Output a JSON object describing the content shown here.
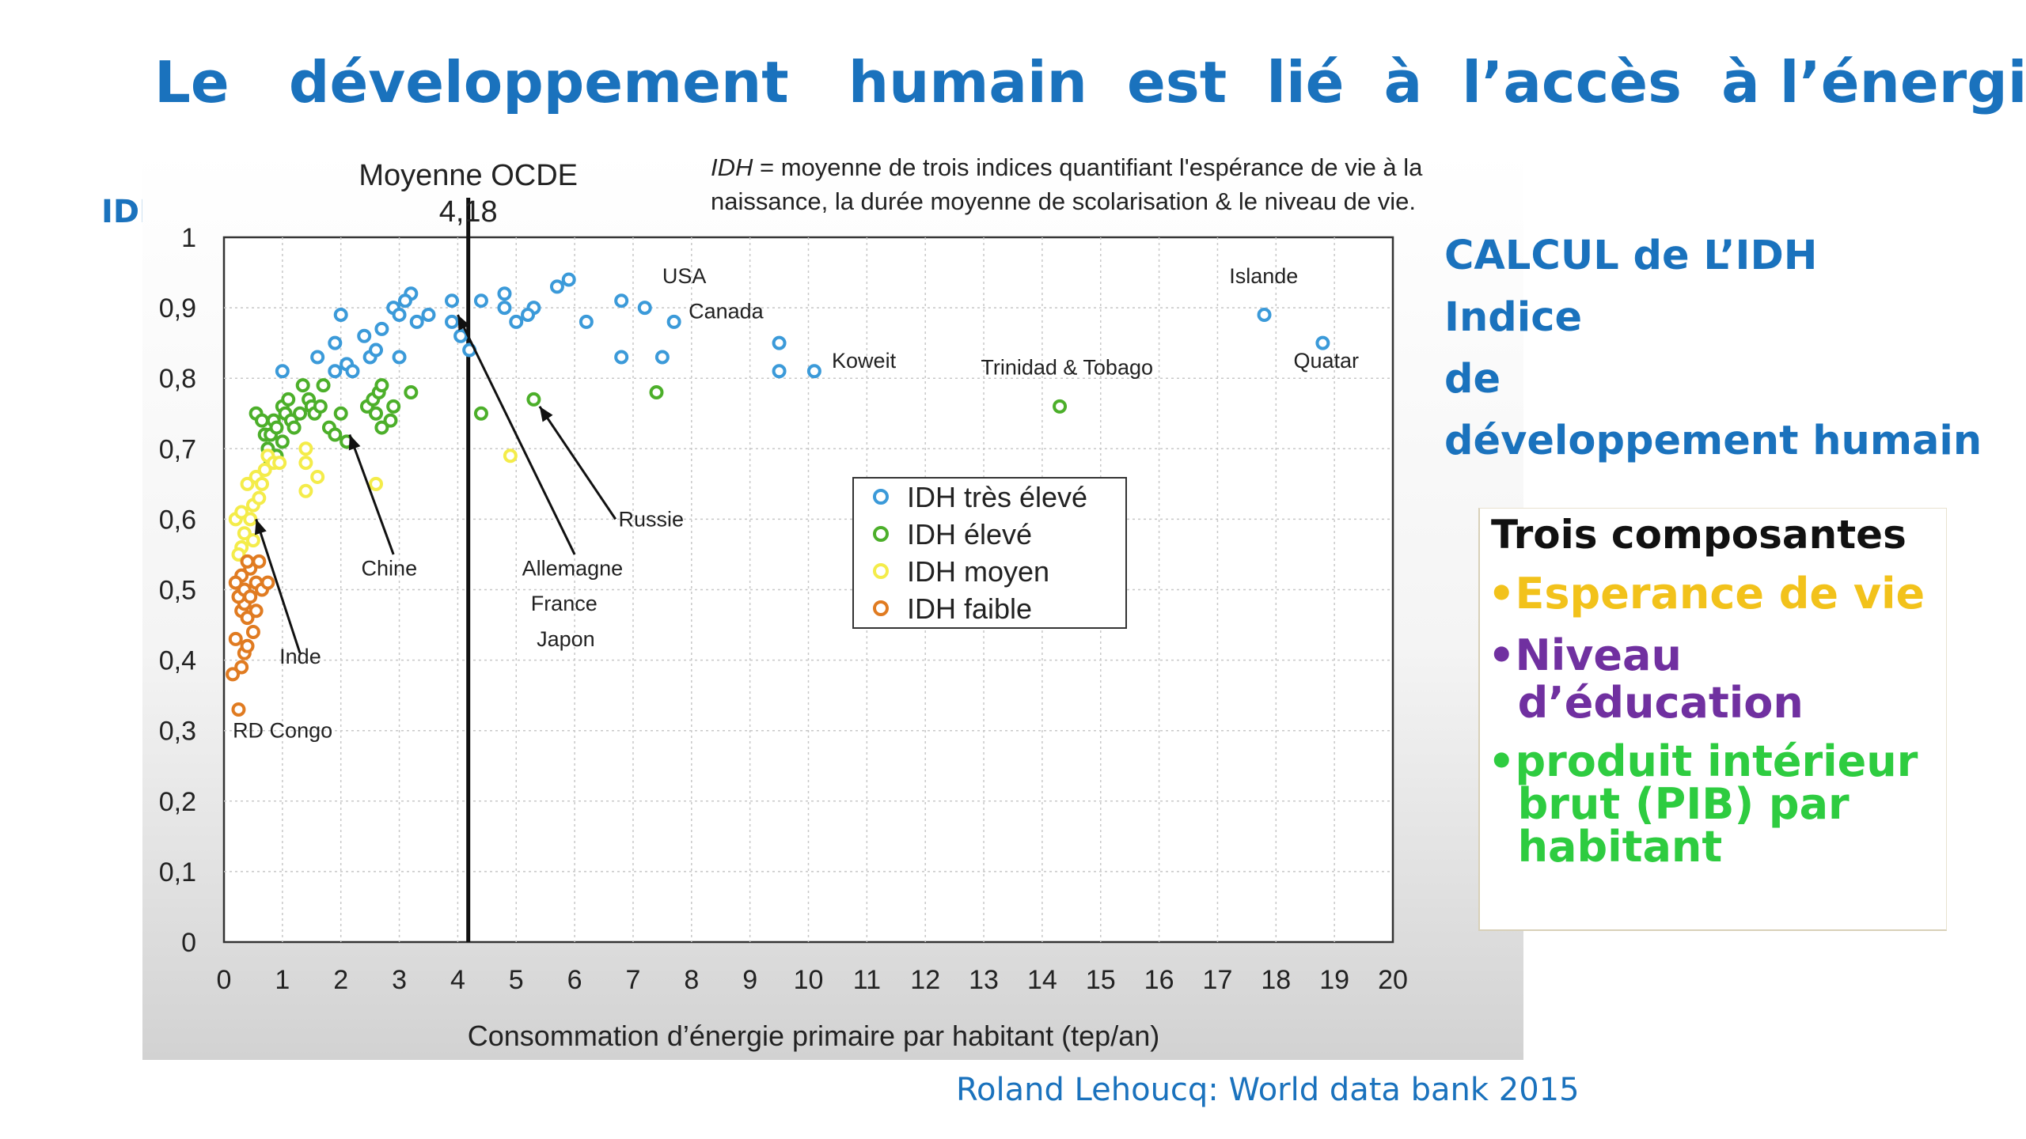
{
  "slide": {
    "title": "Le   développement   humain  est  lié  à  l’accès  à l’énergie",
    "idh_label": "IDH",
    "calc_lines": [
      "CALCUL de L’IDH",
      "Indice",
      "de",
      "développement humain"
    ],
    "components_heading": "Trois composantes",
    "components": [
      {
        "lines": [
          "•Esperance de vie"
        ],
        "color": "#f2c21b"
      },
      {
        "lines": [
          "•Niveau",
          "  d’éducation"
        ],
        "color": "#7030a0"
      },
      {
        "lines": [
          "•produit intérieur",
          "  brut (PIB) par",
          "  habitant"
        ],
        "color": "#2ecc40"
      }
    ],
    "source": "Roland Lehoucq:  World data bank 2015"
  },
  "chart_data": {
    "type": "scatter",
    "title": "",
    "xlabel": "Consommation d’énergie primaire par habitant (tep/an)",
    "ylabel": "IDH",
    "xlim": [
      0,
      20
    ],
    "ylim": [
      0,
      1
    ],
    "x_ticks": [
      0,
      1,
      2,
      3,
      4,
      5,
      6,
      7,
      8,
      9,
      10,
      11,
      12,
      13,
      14,
      15,
      16,
      17,
      18,
      19,
      20
    ],
    "y_ticks": [
      0,
      0.1,
      0.2,
      0.3,
      0.4,
      0.5,
      0.6,
      0.7,
      0.8,
      0.9,
      1
    ],
    "y_tick_labels": [
      "0",
      "0,1",
      "0,2",
      "0,3",
      "0,4",
      "0,5",
      "0,6",
      "0,7",
      "0,8",
      "0,9",
      "1"
    ],
    "grid": true,
    "note_italic": "IDH",
    "note_line1": " = moyenne de trois indices quantifiant l'espérance de vie à la",
    "note_line2": "naissance, la durée moyenne de scolarisation & le niveau de vie.",
    "reference_line": {
      "x": 4.18,
      "label_line1": "Moyenne OCDE",
      "label_line2": "4,18"
    },
    "legend_position": "center-right",
    "series": [
      {
        "name": "IDH très élevé",
        "color": "#3b9ad9",
        "points": [
          [
            1,
            0.81
          ],
          [
            1.9,
            0.85
          ],
          [
            2,
            0.89
          ],
          [
            1.9,
            0.81
          ],
          [
            2.1,
            0.82
          ],
          [
            2.2,
            0.81
          ],
          [
            1.6,
            0.83
          ],
          [
            2.4,
            0.86
          ],
          [
            2.5,
            0.83
          ],
          [
            2.6,
            0.84
          ],
          [
            2.7,
            0.87
          ],
          [
            2.9,
            0.9
          ],
          [
            3.0,
            0.89
          ],
          [
            3.2,
            0.92
          ],
          [
            3.1,
            0.91
          ],
          [
            3.3,
            0.88
          ],
          [
            3.5,
            0.89
          ],
          [
            3.0,
            0.83
          ],
          [
            3.9,
            0.91
          ],
          [
            3.9,
            0.88
          ],
          [
            4.05,
            0.86
          ],
          [
            4.2,
            0.84
          ],
          [
            4.4,
            0.91
          ],
          [
            4.8,
            0.92
          ],
          [
            4.8,
            0.9
          ],
          [
            5.0,
            0.88
          ],
          [
            5.3,
            0.9
          ],
          [
            5.2,
            0.89
          ],
          [
            5.7,
            0.93
          ],
          [
            5.9,
            0.94
          ],
          [
            6.2,
            0.88
          ],
          [
            6.8,
            0.91
          ],
          [
            7.2,
            0.9
          ],
          [
            7.7,
            0.88
          ],
          [
            6.8,
            0.83
          ],
          [
            7.5,
            0.83
          ],
          [
            9.5,
            0.85
          ],
          [
            9.5,
            0.81
          ],
          [
            10.1,
            0.81
          ],
          [
            17.8,
            0.89
          ],
          [
            18.8,
            0.85
          ]
        ]
      },
      {
        "name": "IDH élevé",
        "color": "#4caf2a",
        "points": [
          [
            0.55,
            0.75
          ],
          [
            0.65,
            0.74
          ],
          [
            0.7,
            0.72
          ],
          [
            0.75,
            0.7
          ],
          [
            0.8,
            0.72
          ],
          [
            0.85,
            0.74
          ],
          [
            0.9,
            0.73
          ],
          [
            1.0,
            0.76
          ],
          [
            1.05,
            0.75
          ],
          [
            1.1,
            0.77
          ],
          [
            1.15,
            0.74
          ],
          [
            1.2,
            0.73
          ],
          [
            1.3,
            0.75
          ],
          [
            1.35,
            0.79
          ],
          [
            1.45,
            0.77
          ],
          [
            1.5,
            0.76
          ],
          [
            1.55,
            0.75
          ],
          [
            1.65,
            0.76
          ],
          [
            1.7,
            0.79
          ],
          [
            1.8,
            0.73
          ],
          [
            1.9,
            0.72
          ],
          [
            2.0,
            0.75
          ],
          [
            2.1,
            0.71
          ],
          [
            2.45,
            0.76
          ],
          [
            2.55,
            0.77
          ],
          [
            2.65,
            0.78
          ],
          [
            2.7,
            0.79
          ],
          [
            2.6,
            0.75
          ],
          [
            2.7,
            0.73
          ],
          [
            2.85,
            0.74
          ],
          [
            2.9,
            0.76
          ],
          [
            3.2,
            0.78
          ],
          [
            4.4,
            0.75
          ],
          [
            5.3,
            0.77
          ],
          [
            7.4,
            0.78
          ],
          [
            14.3,
            0.76
          ],
          [
            0.8,
            0.68
          ],
          [
            0.9,
            0.69
          ],
          [
            1.0,
            0.71
          ]
        ]
      },
      {
        "name": "IDH moyen",
        "color": "#f4ec4a",
        "points": [
          [
            0.2,
            0.6
          ],
          [
            0.3,
            0.61
          ],
          [
            0.35,
            0.58
          ],
          [
            0.3,
            0.56
          ],
          [
            0.45,
            0.6
          ],
          [
            0.5,
            0.62
          ],
          [
            0.55,
            0.66
          ],
          [
            0.6,
            0.63
          ],
          [
            0.65,
            0.65
          ],
          [
            0.7,
            0.67
          ],
          [
            0.75,
            0.69
          ],
          [
            0.85,
            0.68
          ],
          [
            0.95,
            0.68
          ],
          [
            1.4,
            0.7
          ],
          [
            1.4,
            0.68
          ],
          [
            1.6,
            0.66
          ],
          [
            1.4,
            0.64
          ],
          [
            2.6,
            0.65
          ],
          [
            4.9,
            0.69
          ],
          [
            0.4,
            0.65
          ],
          [
            0.5,
            0.57
          ],
          [
            0.25,
            0.55
          ]
        ]
      },
      {
        "name": "IDH faible",
        "color": "#e07b21",
        "points": [
          [
            0.15,
            0.38
          ],
          [
            0.3,
            0.39
          ],
          [
            0.25,
            0.33
          ],
          [
            0.2,
            0.43
          ],
          [
            0.35,
            0.41
          ],
          [
            0.4,
            0.42
          ],
          [
            0.5,
            0.44
          ],
          [
            0.3,
            0.47
          ],
          [
            0.35,
            0.48
          ],
          [
            0.25,
            0.49
          ],
          [
            0.35,
            0.5
          ],
          [
            0.45,
            0.49
          ],
          [
            0.55,
            0.51
          ],
          [
            0.3,
            0.52
          ],
          [
            0.45,
            0.53
          ],
          [
            0.65,
            0.5
          ],
          [
            0.4,
            0.54
          ],
          [
            0.6,
            0.54
          ],
          [
            0.2,
            0.51
          ],
          [
            0.4,
            0.46
          ],
          [
            0.55,
            0.47
          ],
          [
            0.75,
            0.51
          ]
        ]
      }
    ],
    "annotations": [
      {
        "text": "USA",
        "x": 7.5,
        "y": 0.935
      },
      {
        "text": "Canada",
        "x": 7.95,
        "y": 0.885
      },
      {
        "text": "Koweit",
        "x": 10.4,
        "y": 0.815
      },
      {
        "text": "Trinidad & Tobago",
        "x": 12.95,
        "y": 0.805
      },
      {
        "text": "Islande",
        "x": 17.2,
        "y": 0.935
      },
      {
        "text": "Quatar",
        "x": 18.3,
        "y": 0.815
      },
      {
        "text": "Russie",
        "x": 6.75,
        "y": 0.59
      },
      {
        "text": "Chine",
        "x": 2.35,
        "y": 0.52
      },
      {
        "text": "Allemagne",
        "x": 5.1,
        "y": 0.52
      },
      {
        "text": "France",
        "x": 5.25,
        "y": 0.47
      },
      {
        "text": "Japon",
        "x": 5.35,
        "y": 0.42
      },
      {
        "text": "Inde",
        "x": 0.95,
        "y": 0.395
      },
      {
        "text": "RD Congo",
        "x": 0.15,
        "y": 0.29
      }
    ],
    "arrows": [
      {
        "from": [
          6.7,
          0.6
        ],
        "to": [
          5.4,
          0.76
        ]
      },
      {
        "from": [
          2.9,
          0.55
        ],
        "to": [
          2.15,
          0.72
        ]
      },
      {
        "from": [
          6.0,
          0.55
        ],
        "to": [
          4.0,
          0.89
        ]
      },
      {
        "from": [
          1.3,
          0.41
        ],
        "to": [
          0.55,
          0.6
        ]
      }
    ]
  }
}
